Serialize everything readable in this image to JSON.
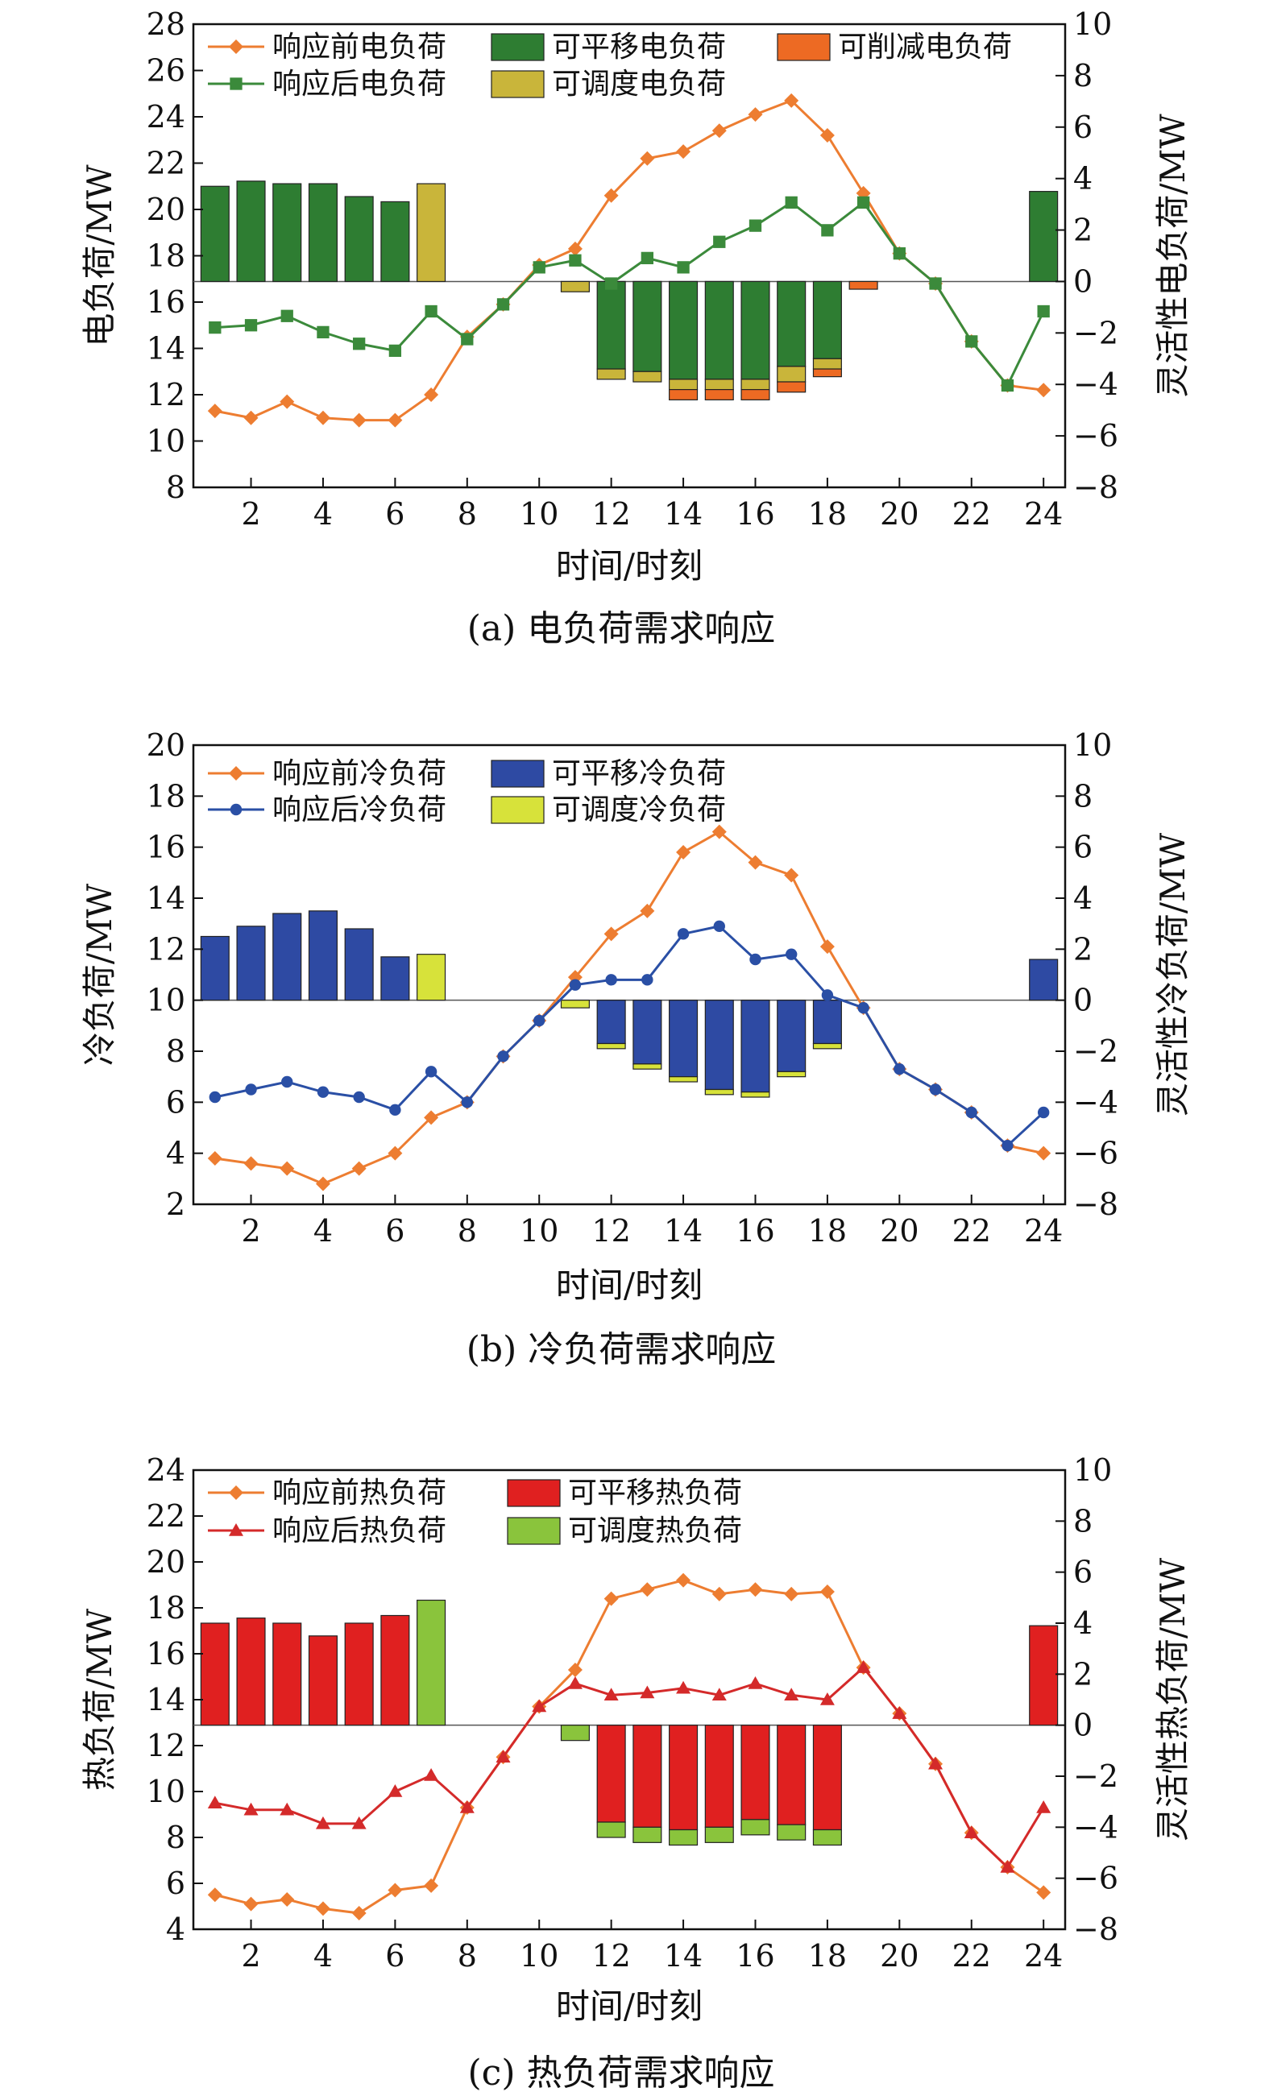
{
  "chart_data": [
    {
      "type": "bar+line",
      "caption": "(a) 电负荷需求响应",
      "xlabel": "时间/时刻",
      "ylabel": "电负荷/MW",
      "y2label": "灵活性电负荷/MW",
      "ylim": [
        8,
        28
      ],
      "yticks": [
        8,
        10,
        12,
        14,
        16,
        18,
        20,
        22,
        24,
        26,
        28
      ],
      "y2lim": [
        -8,
        10
      ],
      "y2ticks": [
        -8,
        -6,
        -4,
        -2,
        0,
        2,
        4,
        6,
        8,
        10
      ],
      "xticks": [
        2,
        4,
        6,
        8,
        10,
        12,
        14,
        16,
        18,
        20,
        22,
        24
      ],
      "x": [
        1,
        2,
        3,
        4,
        5,
        6,
        7,
        8,
        9,
        10,
        11,
        12,
        13,
        14,
        15,
        16,
        17,
        18,
        19,
        20,
        21,
        22,
        23,
        24
      ],
      "lines": [
        {
          "name": "响应前电负荷",
          "color": "#ed7d31",
          "marker": "diamond",
          "values": [
            11.3,
            11.0,
            11.7,
            11.0,
            10.9,
            10.9,
            12.0,
            14.5,
            15.9,
            17.6,
            18.3,
            20.6,
            22.2,
            22.5,
            23.4,
            24.1,
            24.7,
            23.2,
            20.7,
            18.1,
            16.8,
            14.3,
            12.4,
            12.2
          ]
        },
        {
          "name": "响应后电负荷",
          "color": "#3b8a3b",
          "marker": "square",
          "values": [
            14.9,
            15.0,
            15.4,
            14.7,
            14.2,
            13.9,
            15.6,
            14.4,
            15.9,
            17.5,
            17.8,
            16.8,
            17.9,
            17.5,
            18.6,
            19.3,
            20.3,
            19.1,
            20.3,
            18.1,
            16.8,
            14.3,
            12.4,
            15.6
          ]
        }
      ],
      "bars": [
        {
          "name": "可平移电负荷",
          "color": "#2e7d32",
          "values": [
            3.7,
            3.9,
            3.8,
            3.8,
            3.3,
            3.1,
            0,
            0,
            0,
            0,
            0,
            -3.4,
            -3.5,
            -3.8,
            -3.8,
            -3.8,
            -3.3,
            -3.0,
            0,
            0,
            0,
            0,
            0,
            3.5
          ]
        },
        {
          "name": "可调度电负荷",
          "color": "#c9b53a",
          "values": [
            0,
            0,
            0,
            0,
            0,
            0,
            3.8,
            0,
            0,
            0,
            -0.4,
            -0.4,
            -0.4,
            -0.4,
            -0.4,
            -0.4,
            -0.6,
            -0.4,
            0,
            0,
            0,
            0,
            0,
            0
          ]
        },
        {
          "name": "可削减电负荷",
          "color": "#ed6a23",
          "values": [
            0,
            0,
            0,
            0,
            0,
            0,
            0,
            0,
            0,
            0,
            0,
            0,
            0,
            -0.4,
            -0.4,
            -0.4,
            -0.4,
            -0.3,
            -0.3,
            0,
            0,
            0,
            0,
            0
          ]
        }
      ],
      "legend": [
        {
          "name": "响应前电负荷",
          "kind": "line",
          "color": "#ed7d31",
          "marker": "diamond"
        },
        {
          "name": "响应后电负荷",
          "kind": "line",
          "color": "#3b8a3b",
          "marker": "square"
        },
        {
          "name": "可平移电负荷",
          "kind": "bar",
          "color": "#2e7d32"
        },
        {
          "name": "可调度电负荷",
          "kind": "bar",
          "color": "#c9b53a"
        },
        {
          "name": "可削减电负荷",
          "kind": "bar",
          "color": "#ed6a23"
        }
      ]
    },
    {
      "type": "bar+line",
      "caption": "(b) 冷负荷需求响应",
      "xlabel": "时间/时刻",
      "ylabel": "冷负荷/MW",
      "y2label": "灵活性冷负荷/MW",
      "ylim": [
        2,
        20
      ],
      "yticks": [
        2,
        4,
        6,
        8,
        10,
        12,
        14,
        16,
        18,
        20
      ],
      "y2lim": [
        -8,
        10
      ],
      "y2ticks": [
        -8,
        -6,
        -4,
        -2,
        0,
        2,
        4,
        6,
        8,
        10
      ],
      "xticks": [
        2,
        4,
        6,
        8,
        10,
        12,
        14,
        16,
        18,
        20,
        22,
        24
      ],
      "x": [
        1,
        2,
        3,
        4,
        5,
        6,
        7,
        8,
        9,
        10,
        11,
        12,
        13,
        14,
        15,
        16,
        17,
        18,
        19,
        20,
        21,
        22,
        23,
        24
      ],
      "lines": [
        {
          "name": "响应前冷负荷",
          "color": "#ed7d31",
          "marker": "diamond",
          "values": [
            3.8,
            3.6,
            3.4,
            2.8,
            3.4,
            4.0,
            5.4,
            6.0,
            7.8,
            9.2,
            10.9,
            12.6,
            13.5,
            15.8,
            16.6,
            15.4,
            14.9,
            12.1,
            9.7,
            7.3,
            6.5,
            5.6,
            4.3,
            4.0
          ]
        },
        {
          "name": "响应后冷负荷",
          "color": "#2a4fa5",
          "marker": "circle",
          "values": [
            6.2,
            6.5,
            6.8,
            6.4,
            6.2,
            5.7,
            7.2,
            6.0,
            7.8,
            9.2,
            10.6,
            10.8,
            10.8,
            12.6,
            12.9,
            11.6,
            11.8,
            10.2,
            9.7,
            7.3,
            6.5,
            5.6,
            4.3,
            5.6
          ]
        }
      ],
      "bars": [
        {
          "name": "可平移冷负荷",
          "color": "#2e4aa3",
          "values": [
            2.5,
            2.9,
            3.4,
            3.5,
            2.8,
            1.7,
            0,
            0,
            0,
            0,
            0,
            -1.7,
            -2.5,
            -3.0,
            -3.5,
            -3.6,
            -2.8,
            -1.7,
            0,
            0,
            0,
            0,
            0,
            1.6
          ]
        },
        {
          "name": "可调度冷负荷",
          "color": "#d7e23a",
          "values": [
            0,
            0,
            0,
            0,
            0,
            0,
            1.8,
            0,
            0,
            0,
            -0.3,
            -0.2,
            -0.2,
            -0.2,
            -0.2,
            -0.2,
            -0.2,
            -0.2,
            0,
            0,
            0,
            0,
            0,
            0
          ]
        }
      ],
      "legend": [
        {
          "name": "响应前冷负荷",
          "kind": "line",
          "color": "#ed7d31",
          "marker": "diamond"
        },
        {
          "name": "响应后冷负荷",
          "kind": "line",
          "color": "#2a4fa5",
          "marker": "circle"
        },
        {
          "name": "可平移冷负荷",
          "kind": "bar",
          "color": "#2e4aa3"
        },
        {
          "name": "可调度冷负荷",
          "kind": "bar",
          "color": "#d7e23a"
        }
      ]
    },
    {
      "type": "bar+line",
      "caption": "(c) 热负荷需求响应",
      "xlabel": "时间/时刻",
      "ylabel": "热负荷/MW",
      "y2label": "灵活性热负荷/MW",
      "ylim": [
        4,
        24
      ],
      "yticks": [
        4,
        6,
        8,
        10,
        12,
        14,
        16,
        18,
        20,
        22,
        24
      ],
      "y2lim": [
        -8,
        10
      ],
      "y2ticks": [
        -8,
        -6,
        -4,
        -2,
        0,
        2,
        4,
        6,
        8,
        10
      ],
      "xticks": [
        2,
        4,
        6,
        8,
        10,
        12,
        14,
        16,
        18,
        20,
        22,
        24
      ],
      "x": [
        1,
        2,
        3,
        4,
        5,
        6,
        7,
        8,
        9,
        10,
        11,
        12,
        13,
        14,
        15,
        16,
        17,
        18,
        19,
        20,
        21,
        22,
        23,
        24
      ],
      "lines": [
        {
          "name": "响应前热负荷",
          "color": "#ed7d31",
          "marker": "diamond",
          "values": [
            5.5,
            5.1,
            5.3,
            4.9,
            4.7,
            5.7,
            5.9,
            9.3,
            11.5,
            13.7,
            15.3,
            18.4,
            18.8,
            19.2,
            18.6,
            18.8,
            18.6,
            18.7,
            15.4,
            13.4,
            11.2,
            8.2,
            6.7,
            5.6
          ]
        },
        {
          "name": "响应后热负荷",
          "color": "#d42a2a",
          "marker": "triangle",
          "values": [
            9.5,
            9.2,
            9.2,
            8.6,
            8.6,
            10.0,
            10.7,
            9.3,
            11.5,
            13.7,
            14.7,
            14.2,
            14.3,
            14.5,
            14.2,
            14.7,
            14.2,
            14.0,
            15.4,
            13.4,
            11.2,
            8.2,
            6.7,
            9.3
          ]
        }
      ],
      "bars": [
        {
          "name": "可平移热负荷",
          "color": "#e02020",
          "values": [
            4.0,
            4.2,
            4.0,
            3.5,
            4.0,
            4.3,
            0,
            0,
            0,
            0,
            0,
            -3.8,
            -4.0,
            -4.1,
            -4.0,
            -3.7,
            -3.9,
            -4.1,
            0,
            0,
            0,
            0,
            0,
            3.9
          ]
        },
        {
          "name": "可调度热负荷",
          "color": "#8ac43c",
          "values": [
            0,
            0,
            0,
            0,
            0,
            0,
            4.9,
            0,
            0,
            0,
            -0.6,
            -0.6,
            -0.6,
            -0.6,
            -0.6,
            -0.6,
            -0.6,
            -0.6,
            0,
            0,
            0,
            0,
            0,
            0
          ]
        }
      ],
      "legend": [
        {
          "name": "响应前热负荷",
          "kind": "line",
          "color": "#ed7d31",
          "marker": "diamond"
        },
        {
          "name": "响应后热负荷",
          "kind": "line",
          "color": "#d42a2a",
          "marker": "triangle"
        },
        {
          "name": "可平移热负荷",
          "kind": "bar",
          "color": "#e02020"
        },
        {
          "name": "可调度热负荷",
          "kind": "bar",
          "color": "#8ac43c"
        }
      ]
    }
  ]
}
